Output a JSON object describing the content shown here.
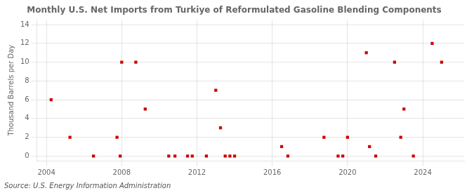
{
  "chart_data": {
    "type": "scatter",
    "title": "Monthly U.S. Net Imports from Turkiye of Reformulated Gasoline Blending Components",
    "ylabel": "Thousand Barrels per Day",
    "annotations": [
      "Source: U.S. Energy Information Administration"
    ],
    "x": [
      2004.25,
      2005.25,
      2006.5,
      2007.75,
      2007.92,
      2008.0,
      2008.75,
      2009.25,
      2010.5,
      2010.83,
      2011.5,
      2011.75,
      2012.5,
      2013.0,
      2013.25,
      2013.5,
      2013.75,
      2014.0,
      2016.5,
      2016.83,
      2018.75,
      2019.5,
      2019.75,
      2020.0,
      2021.0,
      2021.17,
      2021.5,
      2022.5,
      2022.83,
      2023.0,
      2023.5,
      2024.5,
      2025.0
    ],
    "values": [
      6,
      2,
      0,
      2,
      0,
      10,
      10,
      5,
      0,
      0,
      0,
      0,
      0,
      7,
      3,
      0,
      0,
      0,
      1,
      0,
      2,
      0,
      0,
      2,
      11,
      1,
      0,
      10,
      2,
      5,
      0,
      12,
      10
    ],
    "color": "#cc0000",
    "marker": "square",
    "xlim": [
      2003.5,
      2026.2
    ],
    "ylim": [
      -0.5,
      14.5
    ],
    "xticks": [
      2004,
      2008,
      2012,
      2016,
      2020,
      2024
    ],
    "yticks": [
      0,
      2,
      4,
      6,
      8,
      10,
      12,
      14
    ],
    "grid": true
  }
}
